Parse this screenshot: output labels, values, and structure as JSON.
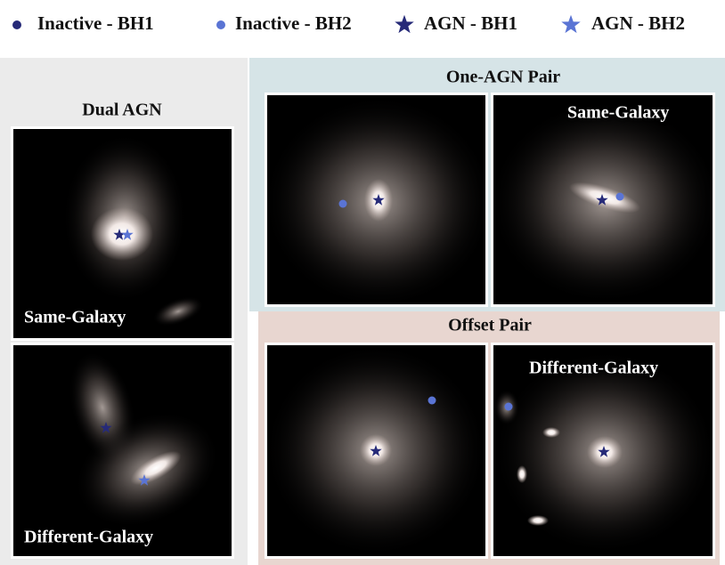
{
  "legend": [
    {
      "label": "Inactive - BH1"
    },
    {
      "label": "Inactive - BH2"
    },
    {
      "label": "AGN - BH1"
    },
    {
      "label": "AGN - BH2"
    }
  ],
  "panels": [
    {
      "title": "Dual AGN",
      "labels": [
        "Same-Galaxy",
        "Different-Galaxy"
      ]
    },
    {
      "title": "One-AGN Pair",
      "label": "Same-Galaxy"
    },
    {
      "title": "Offset Pair",
      "label": "Different-Galaxy"
    }
  ]
}
